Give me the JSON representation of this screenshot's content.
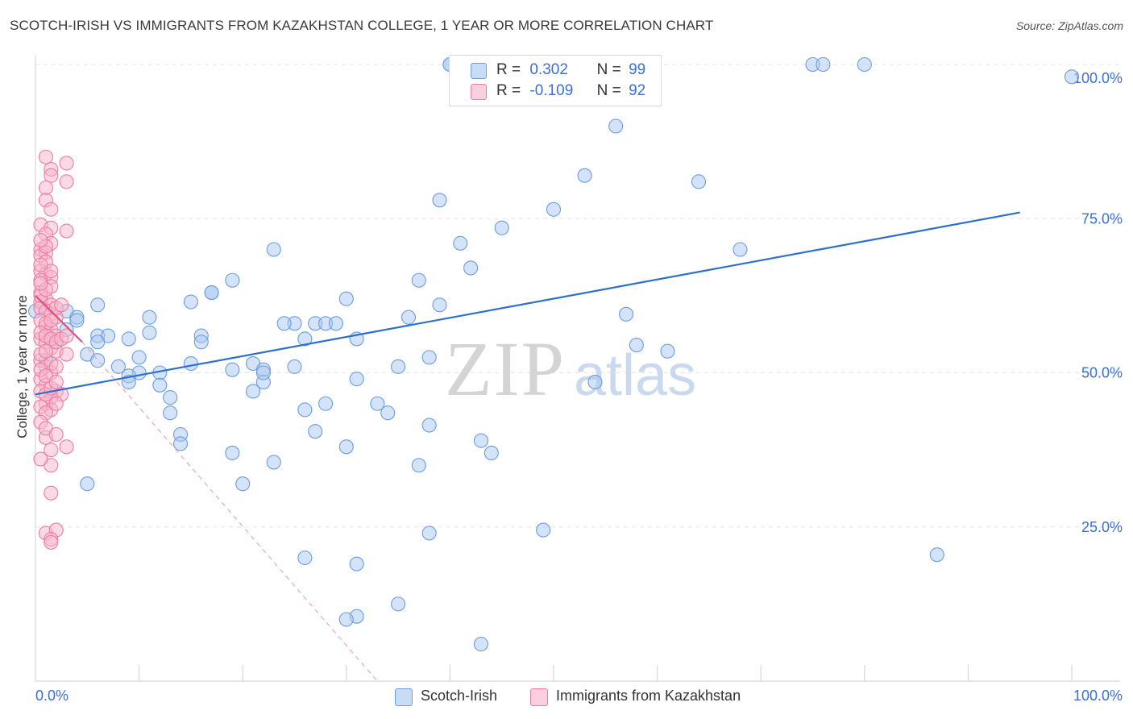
{
  "header": {
    "title": "SCOTCH-IRISH VS IMMIGRANTS FROM KAZAKHSTAN COLLEGE, 1 YEAR OR MORE CORRELATION CHART",
    "source": "Source: ZipAtlas.com"
  },
  "legend": {
    "series1": {
      "r_label": "R =",
      "r_value": "0.302",
      "n_label": "N =",
      "n_value": "99"
    },
    "series2": {
      "r_label": "R =",
      "r_value": "-0.109",
      "n_label": "N =",
      "n_value": "92"
    }
  },
  "watermark": {
    "zip": "ZIP",
    "atlas": "atlas"
  },
  "colors": {
    "blue_fill": "#a9c7f0",
    "blue_stroke": "#6b9de0",
    "blue_line": "#2d6fd0",
    "pink_fill": "#f7b6cb",
    "pink_stroke": "#ee7ca0",
    "pink_line": "#e0507e",
    "axis_text": "#3a6fd8",
    "grid": "#e4e4e4"
  },
  "chart_data": {
    "type": "scatter",
    "title": "SCOTCH-IRISH VS IMMIGRANTS FROM KAZAKHSTAN COLLEGE, 1 YEAR OR MORE CORRELATION CHART",
    "xlabel": "",
    "ylabel": "College, 1 year or more",
    "xlim": [
      0,
      100
    ],
    "ylim": [
      0,
      100
    ],
    "x_tick_labels": [
      "0.0%",
      "100.0%"
    ],
    "y_tick_labels": [
      "25.0%",
      "50.0%",
      "75.0%",
      "100.0%"
    ],
    "y_ticks": [
      25,
      50,
      75,
      100
    ],
    "series": [
      {
        "name": "Scotch-Irish",
        "color": "blue",
        "trend": {
          "x": [
            0,
            95
          ],
          "y": [
            46.5,
            76
          ]
        },
        "points": [
          [
            40,
            100
          ],
          [
            40,
            100
          ],
          [
            48,
            100
          ],
          [
            75,
            100
          ],
          [
            76,
            100
          ],
          [
            80,
            100
          ],
          [
            100,
            98
          ],
          [
            56,
            90
          ],
          [
            53,
            82
          ],
          [
            64,
            81
          ],
          [
            39,
            78
          ],
          [
            50,
            76.5
          ],
          [
            45,
            73.5
          ],
          [
            41,
            71
          ],
          [
            23,
            70
          ],
          [
            68,
            70
          ],
          [
            42,
            67
          ],
          [
            19,
            65
          ],
          [
            37,
            65
          ],
          [
            17,
            63
          ],
          [
            17,
            63
          ],
          [
            15,
            61.5
          ],
          [
            30,
            62
          ],
          [
            6,
            61
          ],
          [
            39,
            61
          ],
          [
            0,
            60
          ],
          [
            3,
            60
          ],
          [
            11,
            59
          ],
          [
            36,
            59
          ],
          [
            57,
            59.5
          ],
          [
            25,
            58
          ],
          [
            27,
            58
          ],
          [
            28,
            58
          ],
          [
            29,
            58
          ],
          [
            24,
            58
          ],
          [
            4,
            59
          ],
          [
            4,
            58.5
          ],
          [
            6,
            56
          ],
          [
            7,
            56
          ],
          [
            11,
            56.5
          ],
          [
            16,
            56
          ],
          [
            9,
            55.5
          ],
          [
            6,
            55
          ],
          [
            16,
            55
          ],
          [
            26,
            55.5
          ],
          [
            58,
            54.5
          ],
          [
            31,
            55.5
          ],
          [
            61,
            53.5
          ],
          [
            5,
            53
          ],
          [
            10,
            52.5
          ],
          [
            38,
            52.5
          ],
          [
            15,
            51.5
          ],
          [
            21,
            51.5
          ],
          [
            8,
            51
          ],
          [
            25,
            51
          ],
          [
            19,
            50.5
          ],
          [
            10,
            50
          ],
          [
            12,
            50
          ],
          [
            22,
            50.5
          ],
          [
            35,
            51
          ],
          [
            9,
            49.5
          ],
          [
            9,
            48.5
          ],
          [
            31,
            49
          ],
          [
            22,
            48.5
          ],
          [
            54,
            48.5
          ],
          [
            12,
            48
          ],
          [
            21,
            47
          ],
          [
            13,
            46
          ],
          [
            28,
            45
          ],
          [
            33,
            45
          ],
          [
            26,
            44
          ],
          [
            13,
            43.5
          ],
          [
            34,
            43.5
          ],
          [
            38,
            41.5
          ],
          [
            27,
            40.5
          ],
          [
            14,
            40
          ],
          [
            14,
            38.5
          ],
          [
            30,
            38
          ],
          [
            43,
            39
          ],
          [
            44,
            37
          ],
          [
            19,
            37
          ],
          [
            23,
            35.5
          ],
          [
            37,
            35
          ],
          [
            20,
            32
          ],
          [
            5,
            32
          ],
          [
            38,
            24
          ],
          [
            49,
            24.5
          ],
          [
            87,
            20.5
          ],
          [
            26,
            20
          ],
          [
            31,
            19
          ],
          [
            35,
            12.5
          ],
          [
            31,
            10.5
          ],
          [
            30,
            10
          ],
          [
            43,
            6
          ],
          [
            22,
            50
          ],
          [
            2,
            55
          ],
          [
            3,
            57
          ],
          [
            1,
            52
          ],
          [
            6,
            52
          ]
        ]
      },
      {
        "name": "Immigrants from Kazakhstan",
        "color": "pink",
        "trend": {
          "x": [
            0,
            4.5
          ],
          "y": [
            62.5,
            55
          ]
        },
        "dashed": {
          "x": [
            4.5,
            33
          ],
          "y": [
            55,
            0
          ]
        },
        "points": [
          [
            1,
            85
          ],
          [
            3,
            84
          ],
          [
            1.5,
            83
          ],
          [
            1.5,
            82
          ],
          [
            3,
            81
          ],
          [
            1,
            80
          ],
          [
            1,
            78
          ],
          [
            1.5,
            76.5
          ],
          [
            0.5,
            74
          ],
          [
            1.5,
            73.5
          ],
          [
            3,
            73
          ],
          [
            1,
            72.5
          ],
          [
            1.5,
            71
          ],
          [
            0.5,
            70
          ],
          [
            1,
            69.5
          ],
          [
            0.5,
            69
          ],
          [
            1,
            68
          ],
          [
            0.5,
            66.5
          ],
          [
            1,
            66
          ],
          [
            1.5,
            65.5
          ],
          [
            0.5,
            65
          ],
          [
            1.5,
            64
          ],
          [
            0.5,
            63
          ],
          [
            1,
            62
          ],
          [
            0.5,
            61.5
          ],
          [
            1.5,
            61
          ],
          [
            0.5,
            60.5
          ],
          [
            1,
            60
          ],
          [
            1.5,
            59.5
          ],
          [
            2,
            59
          ],
          [
            0.5,
            58.5
          ],
          [
            1,
            57.5
          ],
          [
            1.5,
            57
          ],
          [
            2,
            56
          ],
          [
            0.5,
            55.5
          ],
          [
            1,
            55
          ],
          [
            1.5,
            54
          ],
          [
            2,
            53.5
          ],
          [
            3,
            53
          ],
          [
            0.5,
            52
          ],
          [
            1,
            51
          ],
          [
            1.5,
            50
          ],
          [
            0.5,
            49
          ],
          [
            1,
            48
          ],
          [
            2,
            47
          ],
          [
            2.5,
            46.5
          ],
          [
            1.5,
            46
          ],
          [
            1,
            45
          ],
          [
            1.5,
            44
          ],
          [
            1,
            39.5
          ],
          [
            3,
            38
          ],
          [
            1.5,
            37.5
          ],
          [
            1.5,
            30.5
          ],
          [
            1,
            24
          ],
          [
            2,
            24.5
          ],
          [
            1.5,
            23
          ],
          [
            1.5,
            22.5
          ],
          [
            0.5,
            62.5
          ],
          [
            1,
            63.5
          ],
          [
            0.5,
            64.5
          ],
          [
            1.5,
            66.5
          ],
          [
            0.5,
            67.5
          ],
          [
            1,
            70.5
          ],
          [
            0.5,
            71.5
          ],
          [
            1,
            58
          ],
          [
            1.5,
            58.5
          ],
          [
            0.5,
            56.5
          ],
          [
            2,
            60.5
          ],
          [
            2.5,
            61
          ],
          [
            1,
            56
          ],
          [
            1.5,
            55.5
          ],
          [
            2,
            55
          ],
          [
            0.5,
            53
          ],
          [
            1,
            53.5
          ],
          [
            1.5,
            51.5
          ],
          [
            0.5,
            50.5
          ],
          [
            2,
            51
          ],
          [
            1,
            49.5
          ],
          [
            0.5,
            47
          ],
          [
            1,
            46.5
          ],
          [
            1.5,
            47.5
          ],
          [
            2,
            48.5
          ],
          [
            0.5,
            44.5
          ],
          [
            1,
            43.5
          ],
          [
            2,
            45
          ],
          [
            0.5,
            42
          ],
          [
            1,
            41
          ],
          [
            2,
            40
          ],
          [
            1.5,
            35
          ],
          [
            0.5,
            36
          ],
          [
            2.5,
            55.5
          ],
          [
            3,
            56
          ]
        ]
      }
    ]
  },
  "bottom_legend": {
    "item1": "Scotch-Irish",
    "item2": "Immigrants from Kazakhstan"
  }
}
